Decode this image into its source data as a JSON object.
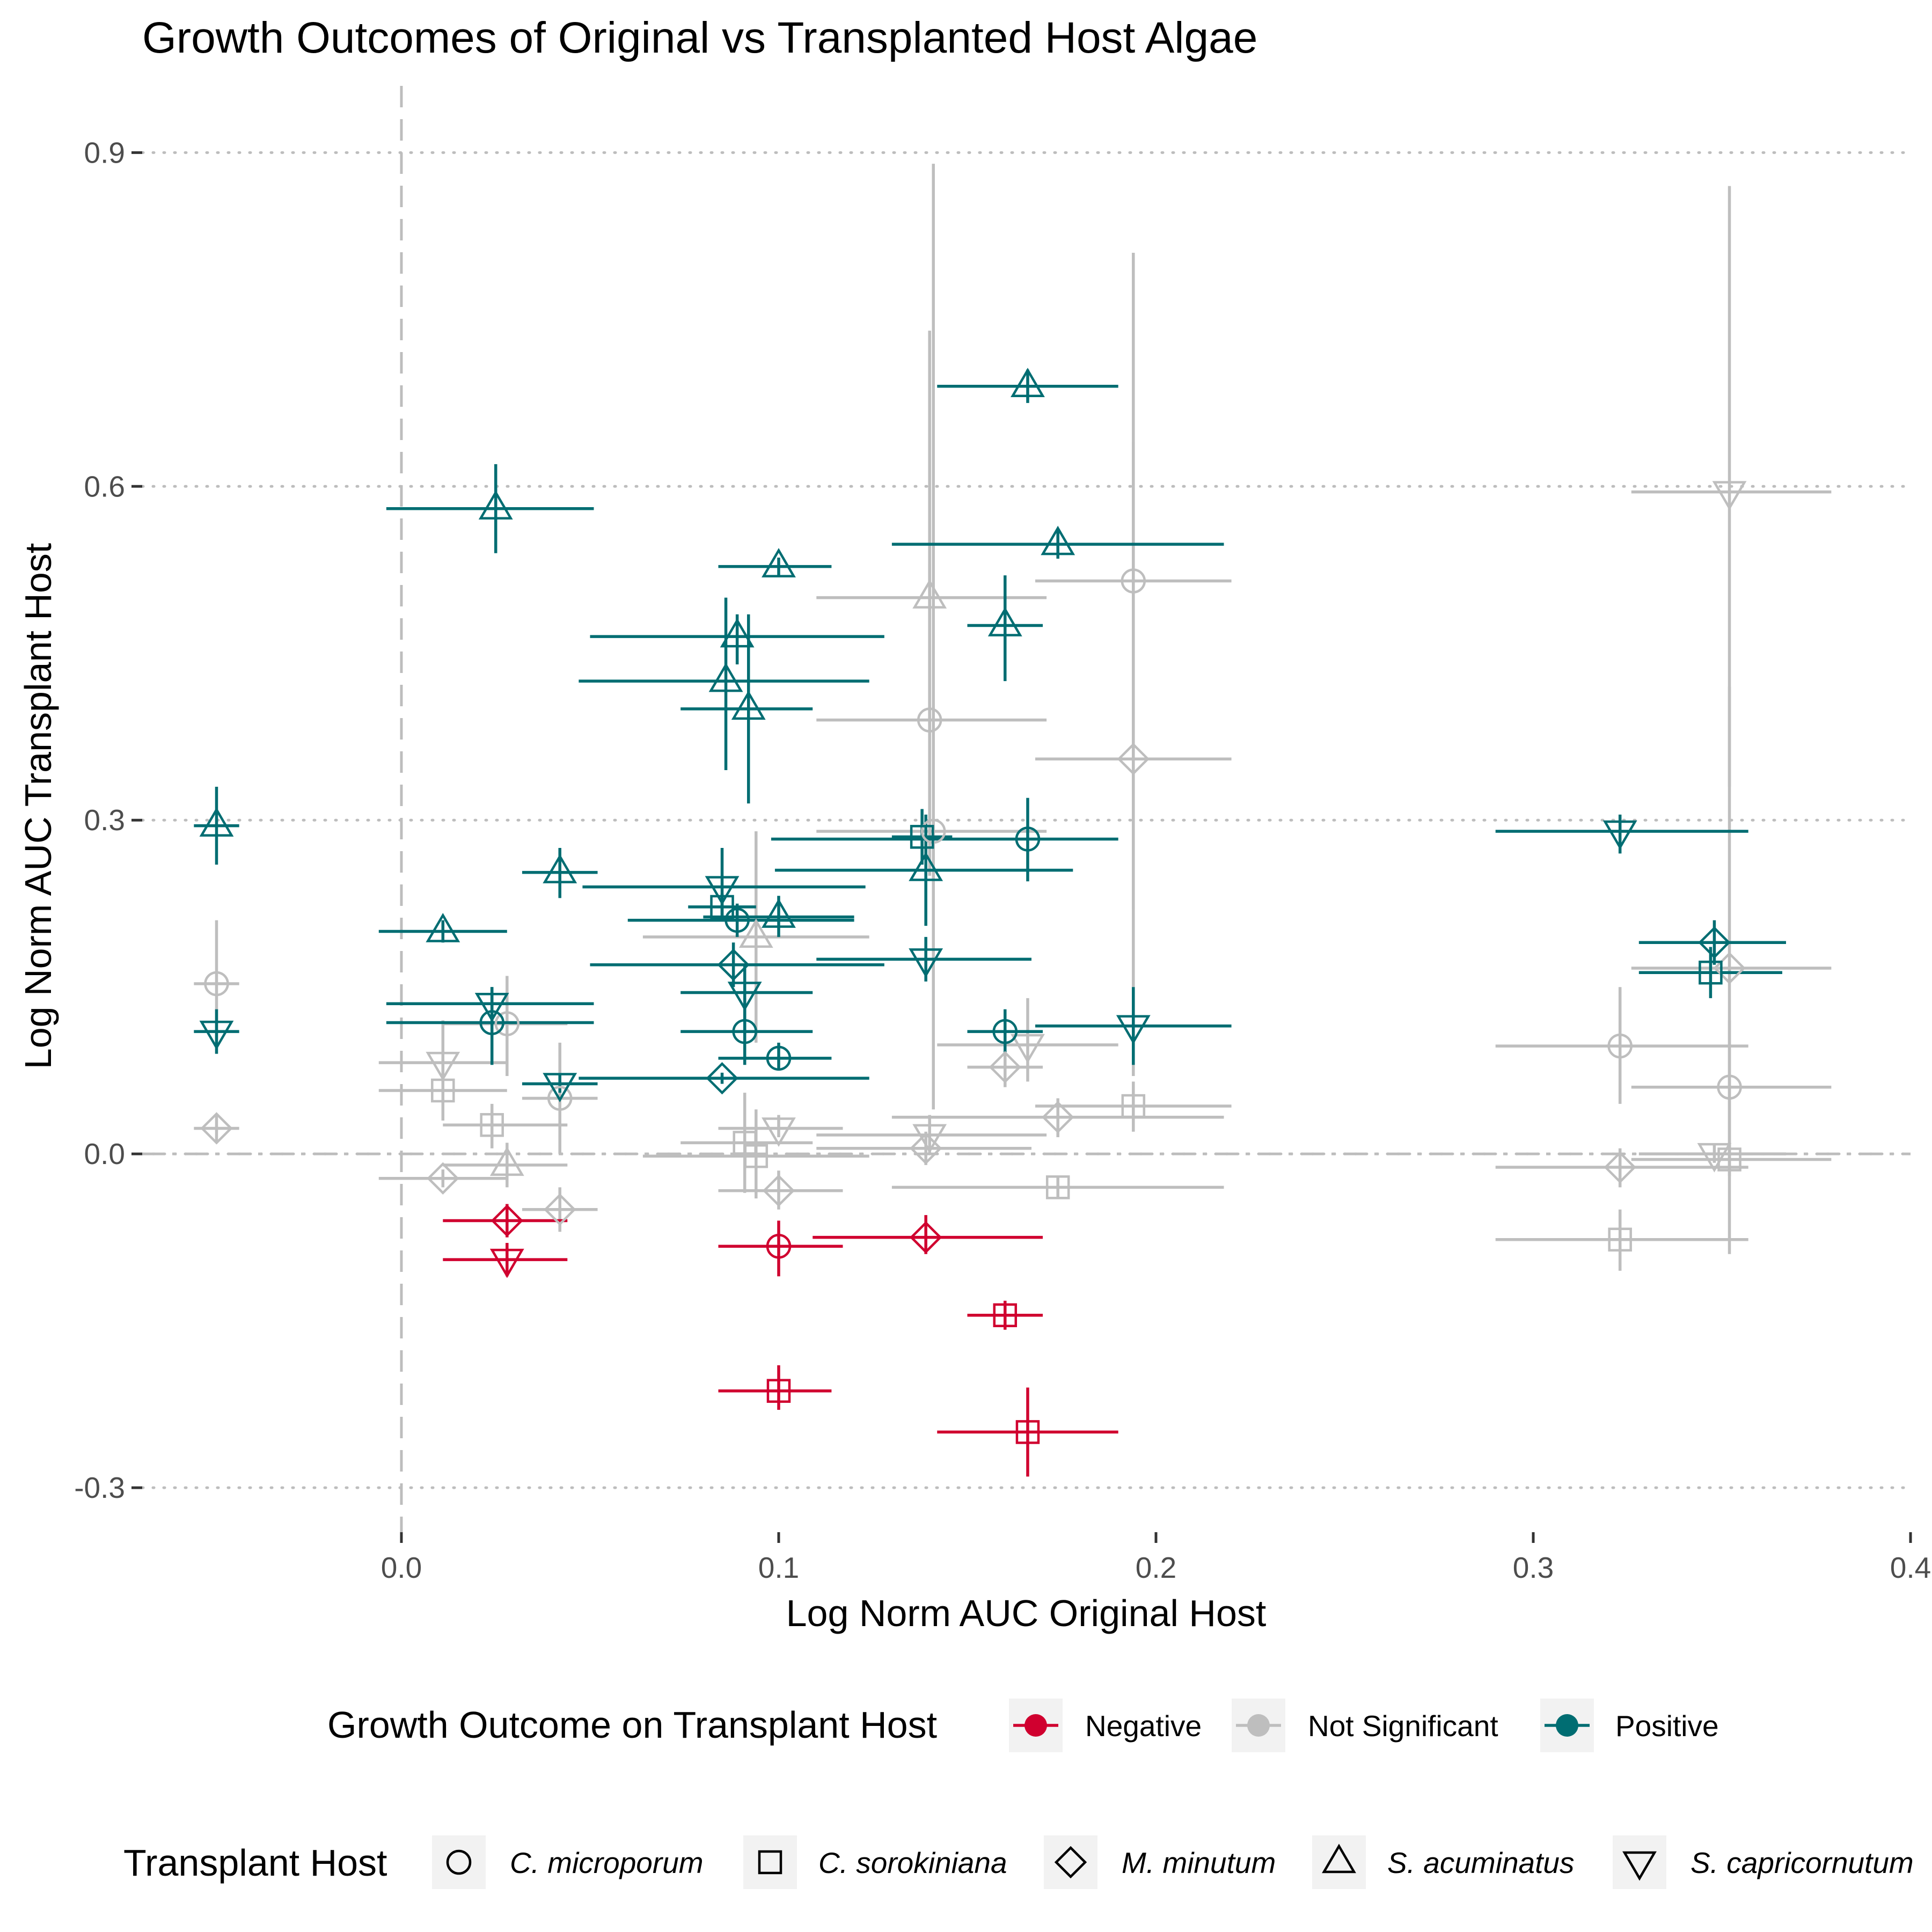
{
  "chart_data": {
    "type": "scatter",
    "title": "Growth Outcomes of Original vs Transplanted Host Algae",
    "xlabel": "Log Norm AUC Original Host",
    "ylabel": "Log Norm AUC Transplant Host",
    "xlim": [
      -0.0687,
      0.4
    ],
    "ylim": [
      -0.34,
      0.96
    ],
    "x_ticks": [
      "0.0",
      "0.1",
      "0.2",
      "0.3",
      "0.4"
    ],
    "y_ticks": [
      "-0.3",
      "0.0",
      "0.3",
      "0.6",
      "0.9"
    ],
    "x_tick_values": [
      0.0,
      0.1,
      0.2,
      0.3,
      0.4
    ],
    "y_tick_values": [
      -0.3,
      0.0,
      0.3,
      0.6,
      0.9
    ],
    "grid": "horizontal dotted major lines",
    "reference_lines": {
      "vertical_dashed_x": 0.0,
      "horizontal_dashdot_y": 0.0
    },
    "colors": {
      "Negative": "#D0002F",
      "Not Significant": "#BEBEBE",
      "Positive": "#006D72"
    },
    "legend": {
      "placement": "bottom",
      "outcome_title": "Growth Outcome on Transplant Host",
      "outcome_labels": [
        "Negative",
        "Not Significant",
        "Positive"
      ],
      "host_title": "Transplant Host",
      "host_labels": [
        "C. microporum",
        "C. sorokiniana",
        "M. minutum",
        "S. acuminatus",
        "S. capricornutum"
      ],
      "host_shapes": [
        "circle",
        "square",
        "diamond",
        "triangle-up",
        "triangle-down"
      ]
    },
    "points": [
      {
        "x": 0.025,
        "y": 0.58,
        "xmin": -0.004,
        "xmax": 0.051,
        "ymin": 0.54,
        "ymax": 0.62,
        "outcome": "Positive",
        "host": "S. acuminatus"
      },
      {
        "x": 0.166,
        "y": 0.69,
        "xmin": 0.142,
        "xmax": 0.19,
        "ymin": 0.675,
        "ymax": 0.705,
        "outcome": "Positive",
        "host": "S. acuminatus"
      },
      {
        "x": 0.1,
        "y": 0.528,
        "xmin": 0.084,
        "xmax": 0.114,
        "ymin": 0.52,
        "ymax": 0.536,
        "outcome": "Positive",
        "host": "S. acuminatus"
      },
      {
        "x": 0.174,
        "y": 0.548,
        "xmin": 0.13,
        "xmax": 0.218,
        "ymin": 0.535,
        "ymax": 0.561,
        "outcome": "Positive",
        "host": "S. acuminatus"
      },
      {
        "x": 0.16,
        "y": 0.475,
        "xmin": 0.15,
        "xmax": 0.17,
        "ymin": 0.425,
        "ymax": 0.52,
        "outcome": "Positive",
        "host": "S. acuminatus"
      },
      {
        "x": 0.089,
        "y": 0.465,
        "xmin": 0.05,
        "xmax": 0.128,
        "ymin": 0.44,
        "ymax": 0.485,
        "outcome": "Positive",
        "host": "S. acuminatus"
      },
      {
        "x": 0.086,
        "y": 0.425,
        "xmin": 0.047,
        "xmax": 0.124,
        "ymin": 0.345,
        "ymax": 0.5,
        "outcome": "Positive",
        "host": "S. acuminatus"
      },
      {
        "x": 0.092,
        "y": 0.4,
        "xmin": 0.074,
        "xmax": 0.109,
        "ymin": 0.315,
        "ymax": 0.485,
        "outcome": "Positive",
        "host": "S. acuminatus"
      },
      {
        "x": -0.049,
        "y": 0.295,
        "xmin": -0.055,
        "xmax": -0.043,
        "ymin": 0.26,
        "ymax": 0.33,
        "outcome": "Positive",
        "host": "S. acuminatus"
      },
      {
        "x": 0.042,
        "y": 0.253,
        "xmin": 0.032,
        "xmax": 0.052,
        "ymin": 0.23,
        "ymax": 0.275,
        "outcome": "Positive",
        "host": "S. acuminatus"
      },
      {
        "x": 0.011,
        "y": 0.2,
        "xmin": -0.006,
        "xmax": 0.028,
        "ymin": 0.19,
        "ymax": 0.21,
        "outcome": "Positive",
        "host": "S. acuminatus"
      },
      {
        "x": 0.139,
        "y": 0.255,
        "xmin": 0.099,
        "xmax": 0.178,
        "ymin": 0.205,
        "ymax": 0.305,
        "outcome": "Positive",
        "host": "S. acuminatus"
      },
      {
        "x": 0.1,
        "y": 0.213,
        "xmin": 0.08,
        "xmax": 0.12,
        "ymin": 0.195,
        "ymax": 0.232,
        "outcome": "Positive",
        "host": "S. acuminatus"
      },
      {
        "x": 0.166,
        "y": 0.283,
        "xmin": 0.098,
        "xmax": 0.19,
        "ymin": 0.245,
        "ymax": 0.32,
        "outcome": "Positive",
        "host": "C. microporum"
      },
      {
        "x": 0.089,
        "y": 0.21,
        "xmin": 0.06,
        "xmax": 0.12,
        "ymin": 0.195,
        "ymax": 0.225,
        "outcome": "Positive",
        "host": "C. microporum"
      },
      {
        "x": 0.024,
        "y": 0.118,
        "xmin": -0.004,
        "xmax": 0.051,
        "ymin": 0.08,
        "ymax": 0.15,
        "outcome": "Positive",
        "host": "C. microporum"
      },
      {
        "x": 0.091,
        "y": 0.11,
        "xmin": 0.074,
        "xmax": 0.109,
        "ymin": 0.08,
        "ymax": 0.14,
        "outcome": "Positive",
        "host": "C. microporum"
      },
      {
        "x": 0.1,
        "y": 0.086,
        "xmin": 0.084,
        "xmax": 0.114,
        "ymin": 0.075,
        "ymax": 0.1,
        "outcome": "Positive",
        "host": "C. microporum"
      },
      {
        "x": 0.16,
        "y": 0.11,
        "xmin": 0.15,
        "xmax": 0.17,
        "ymin": 0.09,
        "ymax": 0.13,
        "outcome": "Positive",
        "host": "C. microporum"
      },
      {
        "x": 0.138,
        "y": 0.285,
        "xmin": 0.13,
        "xmax": 0.146,
        "ymin": 0.26,
        "ymax": 0.31,
        "outcome": "Positive",
        "host": "C. sorokiniana"
      },
      {
        "x": 0.085,
        "y": 0.222,
        "xmin": 0.076,
        "xmax": 0.094,
        "ymin": 0.21,
        "ymax": 0.234,
        "outcome": "Positive",
        "host": "C. sorokiniana"
      },
      {
        "x": 0.347,
        "y": 0.163,
        "xmin": 0.328,
        "xmax": 0.366,
        "ymin": 0.14,
        "ymax": 0.186,
        "outcome": "Positive",
        "host": "C. sorokiniana"
      },
      {
        "x": 0.088,
        "y": 0.17,
        "xmin": 0.05,
        "xmax": 0.128,
        "ymin": 0.15,
        "ymax": 0.19,
        "outcome": "Positive",
        "host": "M. minutum"
      },
      {
        "x": 0.085,
        "y": 0.068,
        "xmin": 0.047,
        "xmax": 0.124,
        "ymin": 0.063,
        "ymax": 0.073,
        "outcome": "Positive",
        "host": "M. minutum"
      },
      {
        "x": 0.348,
        "y": 0.19,
        "xmin": 0.328,
        "xmax": 0.367,
        "ymin": 0.17,
        "ymax": 0.21,
        "outcome": "Positive",
        "host": "M. minutum"
      },
      {
        "x": 0.085,
        "y": 0.24,
        "xmin": 0.048,
        "xmax": 0.123,
        "ymin": 0.21,
        "ymax": 0.275,
        "outcome": "Positive",
        "host": "S. capricornutum"
      },
      {
        "x": 0.139,
        "y": 0.175,
        "xmin": 0.11,
        "xmax": 0.167,
        "ymin": 0.155,
        "ymax": 0.195,
        "outcome": "Positive",
        "host": "S. capricornutum"
      },
      {
        "x": 0.323,
        "y": 0.29,
        "xmin": 0.29,
        "xmax": 0.357,
        "ymin": 0.27,
        "ymax": 0.305,
        "outcome": "Positive",
        "host": "S. capricornutum"
      },
      {
        "x": 0.091,
        "y": 0.145,
        "xmin": 0.074,
        "xmax": 0.109,
        "ymin": 0.11,
        "ymax": 0.17,
        "outcome": "Positive",
        "host": "S. capricornutum"
      },
      {
        "x": 0.024,
        "y": 0.135,
        "xmin": -0.004,
        "xmax": 0.051,
        "ymin": 0.12,
        "ymax": 0.15,
        "outcome": "Positive",
        "host": "S. capricornutum"
      },
      {
        "x": -0.049,
        "y": 0.11,
        "xmin": -0.055,
        "xmax": -0.043,
        "ymin": 0.09,
        "ymax": 0.13,
        "outcome": "Positive",
        "host": "S. capricornutum"
      },
      {
        "x": 0.042,
        "y": 0.063,
        "xmin": 0.032,
        "xmax": 0.052,
        "ymin": 0.055,
        "ymax": 0.072,
        "outcome": "Positive",
        "host": "S. capricornutum"
      },
      {
        "x": 0.194,
        "y": 0.115,
        "xmin": 0.168,
        "xmax": 0.22,
        "ymin": 0.08,
        "ymax": 0.15,
        "outcome": "Positive",
        "host": "S. capricornutum"
      },
      {
        "x": 0.1,
        "y": -0.083,
        "xmin": 0.084,
        "xmax": 0.117,
        "ymin": -0.11,
        "ymax": -0.06,
        "outcome": "Negative",
        "host": "C. microporum"
      },
      {
        "x": 0.16,
        "y": -0.145,
        "xmin": 0.15,
        "xmax": 0.17,
        "ymin": -0.158,
        "ymax": -0.132,
        "outcome": "Negative",
        "host": "C. sorokiniana"
      },
      {
        "x": 0.1,
        "y": -0.213,
        "xmin": 0.084,
        "xmax": 0.114,
        "ymin": -0.23,
        "ymax": -0.19,
        "outcome": "Negative",
        "host": "C. sorokiniana"
      },
      {
        "x": 0.166,
        "y": -0.25,
        "xmin": 0.142,
        "xmax": 0.19,
        "ymin": -0.29,
        "ymax": -0.21,
        "outcome": "Negative",
        "host": "C. sorokiniana"
      },
      {
        "x": 0.028,
        "y": -0.06,
        "xmin": 0.011,
        "xmax": 0.044,
        "ymin": -0.075,
        "ymax": -0.045,
        "outcome": "Negative",
        "host": "M. minutum"
      },
      {
        "x": 0.139,
        "y": -0.075,
        "xmin": 0.109,
        "xmax": 0.17,
        "ymin": -0.09,
        "ymax": -0.055,
        "outcome": "Negative",
        "host": "M. minutum"
      },
      {
        "x": 0.028,
        "y": -0.095,
        "xmin": 0.011,
        "xmax": 0.044,
        "ymin": -0.11,
        "ymax": -0.08,
        "outcome": "Negative",
        "host": "S. capricornutum"
      },
      {
        "x": 0.14,
        "y": 0.5,
        "xmin": 0.11,
        "xmax": 0.171,
        "ymin": 0.38,
        "ymax": 0.74,
        "outcome": "Not Significant",
        "host": "S. acuminatus"
      },
      {
        "x": 0.094,
        "y": 0.195,
        "xmin": 0.064,
        "xmax": 0.124,
        "ymin": 0.1,
        "ymax": 0.29,
        "outcome": "Not Significant",
        "host": "S. acuminatus"
      },
      {
        "x": 0.028,
        "y": -0.01,
        "xmin": 0.011,
        "xmax": 0.044,
        "ymin": -0.03,
        "ymax": 0.01,
        "outcome": "Not Significant",
        "host": "S. acuminatus"
      },
      {
        "x": 0.194,
        "y": 0.515,
        "xmin": 0.168,
        "xmax": 0.22,
        "ymin": 0.22,
        "ymax": 0.81,
        "outcome": "Not Significant",
        "host": "C. microporum"
      },
      {
        "x": 0.14,
        "y": 0.39,
        "xmin": 0.11,
        "xmax": 0.171,
        "ymin": 0.25,
        "ymax": 0.53,
        "outcome": "Not Significant",
        "host": "C. microporum"
      },
      {
        "x": 0.141,
        "y": 0.29,
        "xmin": 0.11,
        "xmax": 0.171,
        "ymin": 0.04,
        "ymax": 0.89,
        "outcome": "Not Significant",
        "host": "C. microporum"
      },
      {
        "x": -0.049,
        "y": 0.153,
        "xmin": -0.055,
        "xmax": -0.043,
        "ymin": 0.1,
        "ymax": 0.21,
        "outcome": "Not Significant",
        "host": "C. microporum"
      },
      {
        "x": 0.028,
        "y": 0.117,
        "xmin": 0.011,
        "xmax": 0.044,
        "ymin": 0.07,
        "ymax": 0.16,
        "outcome": "Not Significant",
        "host": "C. microporum"
      },
      {
        "x": 0.042,
        "y": 0.05,
        "xmin": 0.032,
        "xmax": 0.052,
        "ymin": 0.0,
        "ymax": 0.1,
        "outcome": "Not Significant",
        "host": "C. microporum"
      },
      {
        "x": 0.323,
        "y": 0.097,
        "xmin": 0.29,
        "xmax": 0.357,
        "ymin": 0.045,
        "ymax": 0.15,
        "outcome": "Not Significant",
        "host": "C. microporum"
      },
      {
        "x": 0.352,
        "y": 0.06,
        "xmin": 0.326,
        "xmax": 0.379,
        "ymin": 0.0,
        "ymax": 0.12,
        "outcome": "Not Significant",
        "host": "C. microporum"
      },
      {
        "x": 0.011,
        "y": 0.057,
        "xmin": -0.006,
        "xmax": 0.028,
        "ymin": 0.03,
        "ymax": 0.085,
        "outcome": "Not Significant",
        "host": "C. sorokiniana"
      },
      {
        "x": 0.024,
        "y": 0.026,
        "xmin": 0.011,
        "xmax": 0.044,
        "ymin": 0.005,
        "ymax": 0.045,
        "outcome": "Not Significant",
        "host": "C. sorokiniana"
      },
      {
        "x": 0.091,
        "y": 0.01,
        "xmin": 0.074,
        "xmax": 0.109,
        "ymin": -0.035,
        "ymax": 0.055,
        "outcome": "Not Significant",
        "host": "C. sorokiniana"
      },
      {
        "x": 0.094,
        "y": -0.002,
        "xmin": 0.064,
        "xmax": 0.124,
        "ymin": -0.04,
        "ymax": 0.04,
        "outcome": "Not Significant",
        "host": "C. sorokiniana"
      },
      {
        "x": 0.194,
        "y": 0.043,
        "xmin": 0.168,
        "xmax": 0.22,
        "ymin": 0.02,
        "ymax": 0.065,
        "outcome": "Not Significant",
        "host": "C. sorokiniana"
      },
      {
        "x": 0.174,
        "y": -0.03,
        "xmin": 0.13,
        "xmax": 0.218,
        "ymin": -0.04,
        "ymax": -0.02,
        "outcome": "Not Significant",
        "host": "C. sorokiniana"
      },
      {
        "x": 0.352,
        "y": -0.005,
        "xmin": 0.326,
        "xmax": 0.379,
        "ymin": -0.02,
        "ymax": 0.01,
        "outcome": "Not Significant",
        "host": "C. sorokiniana"
      },
      {
        "x": 0.323,
        "y": -0.077,
        "xmin": 0.29,
        "xmax": 0.357,
        "ymin": -0.105,
        "ymax": -0.05,
        "outcome": "Not Significant",
        "host": "C. sorokiniana"
      },
      {
        "x": -0.049,
        "y": 0.023,
        "xmin": -0.055,
        "xmax": -0.043,
        "ymin": 0.01,
        "ymax": 0.036,
        "outcome": "Not Significant",
        "host": "M. minutum"
      },
      {
        "x": 0.011,
        "y": -0.022,
        "xmin": -0.006,
        "xmax": 0.028,
        "ymin": -0.03,
        "ymax": -0.014,
        "outcome": "Not Significant",
        "host": "M. minutum"
      },
      {
        "x": 0.042,
        "y": -0.05,
        "xmin": 0.032,
        "xmax": 0.052,
        "ymin": -0.07,
        "ymax": -0.03,
        "outcome": "Not Significant",
        "host": "M. minutum"
      },
      {
        "x": 0.1,
        "y": -0.033,
        "xmin": 0.084,
        "xmax": 0.117,
        "ymin": -0.05,
        "ymax": -0.015,
        "outcome": "Not Significant",
        "host": "M. minutum"
      },
      {
        "x": 0.139,
        "y": 0.005,
        "xmin": 0.11,
        "xmax": 0.167,
        "ymin": -0.01,
        "ymax": 0.02,
        "outcome": "Not Significant",
        "host": "M. minutum"
      },
      {
        "x": 0.16,
        "y": 0.078,
        "xmin": 0.15,
        "xmax": 0.17,
        "ymin": 0.06,
        "ymax": 0.096,
        "outcome": "Not Significant",
        "host": "M. minutum"
      },
      {
        "x": 0.174,
        "y": 0.033,
        "xmin": 0.13,
        "xmax": 0.218,
        "ymin": 0.015,
        "ymax": 0.05,
        "outcome": "Not Significant",
        "host": "M. minutum"
      },
      {
        "x": 0.194,
        "y": 0.355,
        "xmin": 0.168,
        "xmax": 0.22,
        "ymin": 0.07,
        "ymax": 0.64,
        "outcome": "Not Significant",
        "host": "M. minutum"
      },
      {
        "x": 0.323,
        "y": -0.012,
        "xmin": 0.29,
        "xmax": 0.357,
        "ymin": -0.03,
        "ymax": 0.005,
        "outcome": "Not Significant",
        "host": "M. minutum"
      },
      {
        "x": 0.352,
        "y": 0.167,
        "xmin": 0.326,
        "xmax": 0.379,
        "ymin": -0.09,
        "ymax": 0.42,
        "outcome": "Not Significant",
        "host": "M. minutum"
      },
      {
        "x": 0.011,
        "y": 0.082,
        "xmin": -0.006,
        "xmax": 0.028,
        "ymin": 0.065,
        "ymax": 0.12,
        "outcome": "Not Significant",
        "host": "S. capricornutum"
      },
      {
        "x": 0.1,
        "y": 0.023,
        "xmin": 0.084,
        "xmax": 0.117,
        "ymin": 0.015,
        "ymax": 0.035,
        "outcome": "Not Significant",
        "host": "S. capricornutum"
      },
      {
        "x": 0.14,
        "y": 0.017,
        "xmin": 0.11,
        "xmax": 0.171,
        "ymin": 0.0,
        "ymax": 0.035,
        "outcome": "Not Significant",
        "host": "S. capricornutum"
      },
      {
        "x": 0.166,
        "y": 0.098,
        "xmin": 0.142,
        "xmax": 0.19,
        "ymin": 0.065,
        "ymax": 0.14,
        "outcome": "Not Significant",
        "host": "S. capricornutum"
      },
      {
        "x": 0.352,
        "y": 0.595,
        "xmin": 0.326,
        "xmax": 0.379,
        "ymin": 0.33,
        "ymax": 0.87,
        "outcome": "Not Significant",
        "host": "S. capricornutum"
      },
      {
        "x": 0.348,
        "y": 0.0,
        "xmin": 0.328,
        "xmax": 0.367,
        "ymin": -0.008,
        "ymax": 0.008,
        "outcome": "Not Significant",
        "host": "S. capricornutum"
      }
    ]
  }
}
